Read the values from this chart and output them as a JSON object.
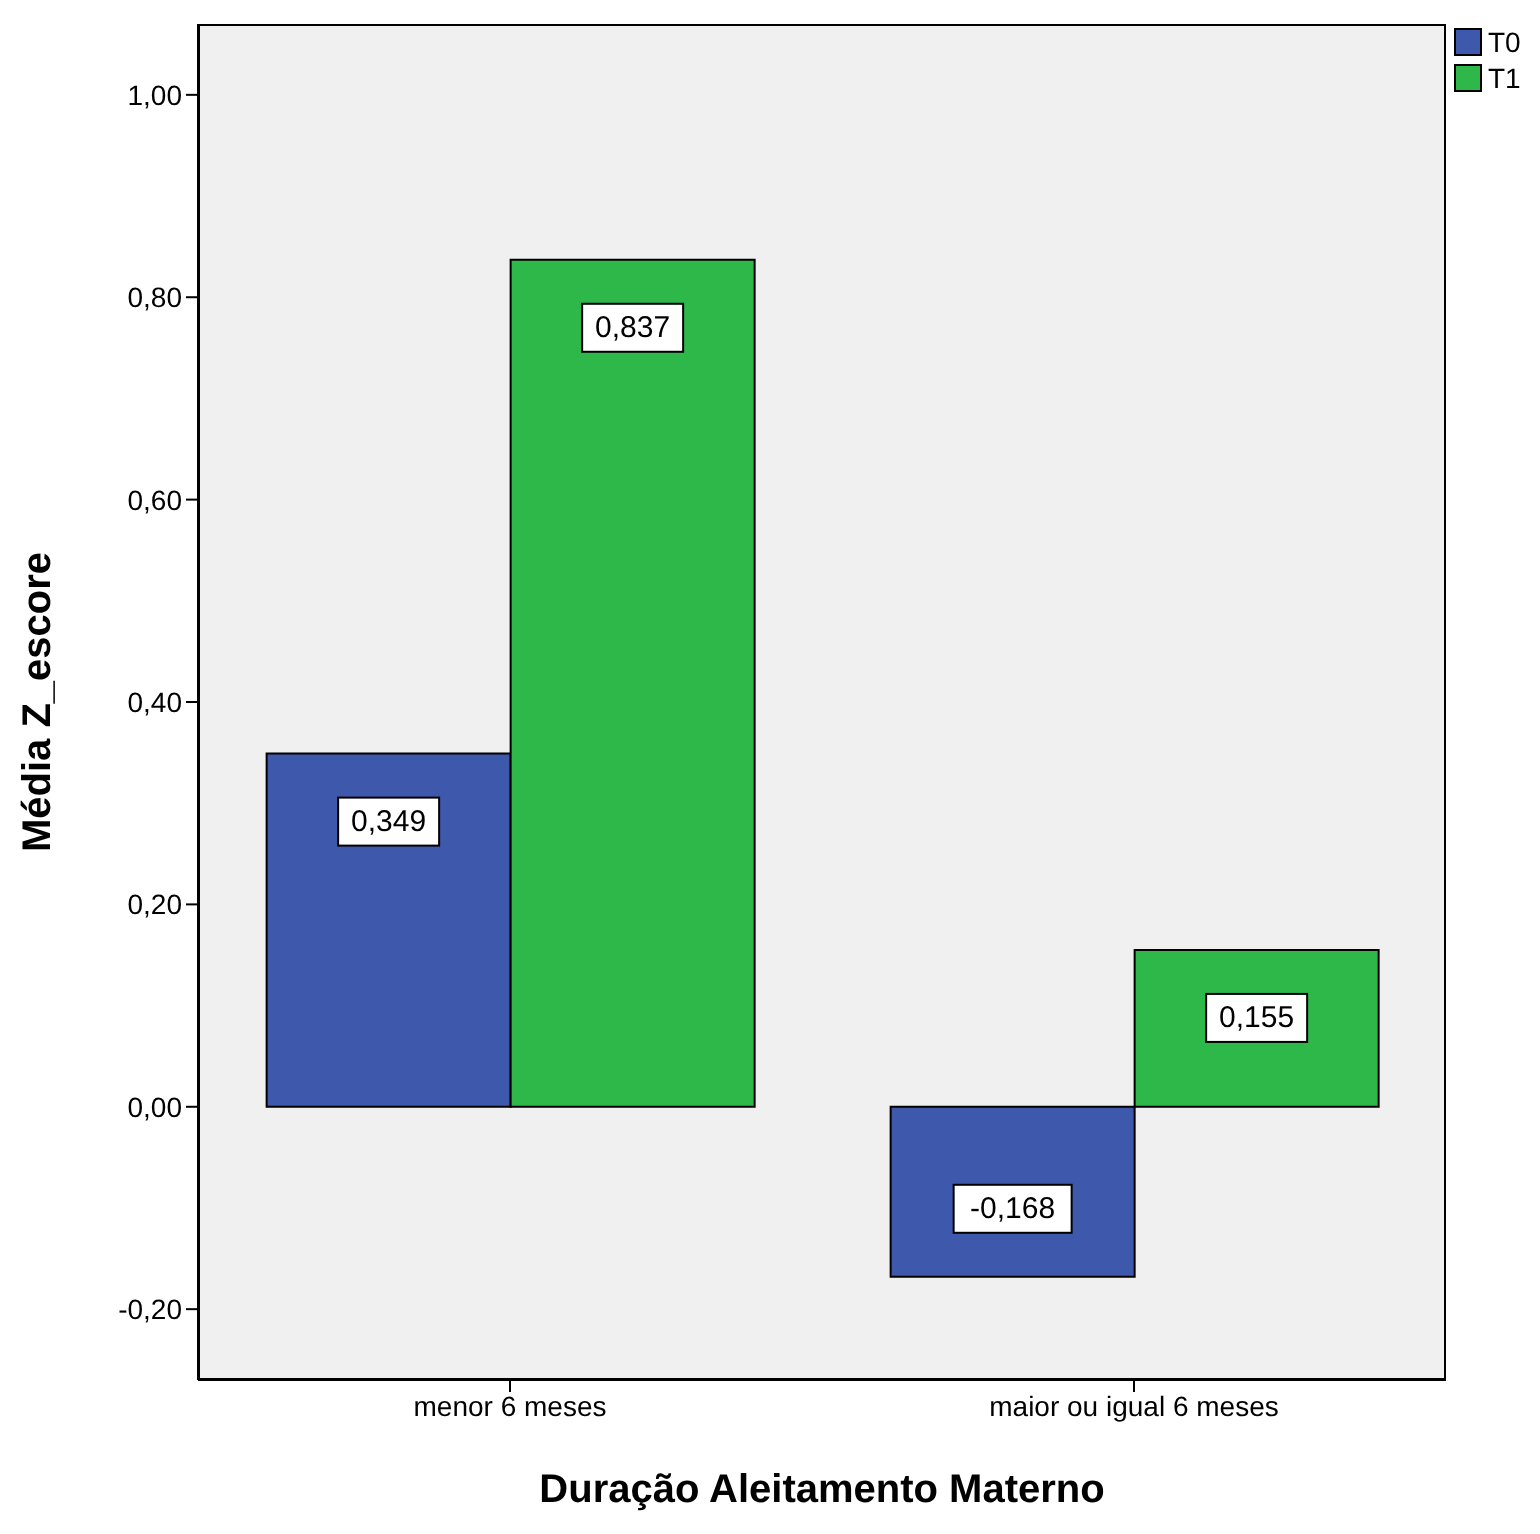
{
  "chart_data": {
    "type": "bar",
    "xlabel": "Duração Aleitamento Materno",
    "ylabel": "Média Z_escore",
    "categories": [
      "menor 6 meses",
      "maior ou igual 6 meses"
    ],
    "series": [
      {
        "name": "T0",
        "color": "#3e58ac",
        "values": [
          0.349,
          -0.168
        ],
        "value_labels": [
          "0,349",
          "-0,168"
        ]
      },
      {
        "name": "T1",
        "color": "#2fb84a",
        "values": [
          0.837,
          0.155
        ],
        "value_labels": [
          "0,837",
          "0,155"
        ]
      }
    ],
    "ylim": [
      -0.27,
      1.07
    ],
    "yticks": [
      {
        "value": -0.2,
        "label": "-0,20"
      },
      {
        "value": 0,
        "label": "0,00"
      },
      {
        "value": 0.2,
        "label": "0,20"
      },
      {
        "value": 0.4,
        "label": "0,40"
      },
      {
        "value": 0.6,
        "label": "0,60"
      },
      {
        "value": 0.8,
        "label": "0,80"
      },
      {
        "value": 1,
        "label": "1,00"
      }
    ],
    "grid": false,
    "legend": "top right"
  }
}
